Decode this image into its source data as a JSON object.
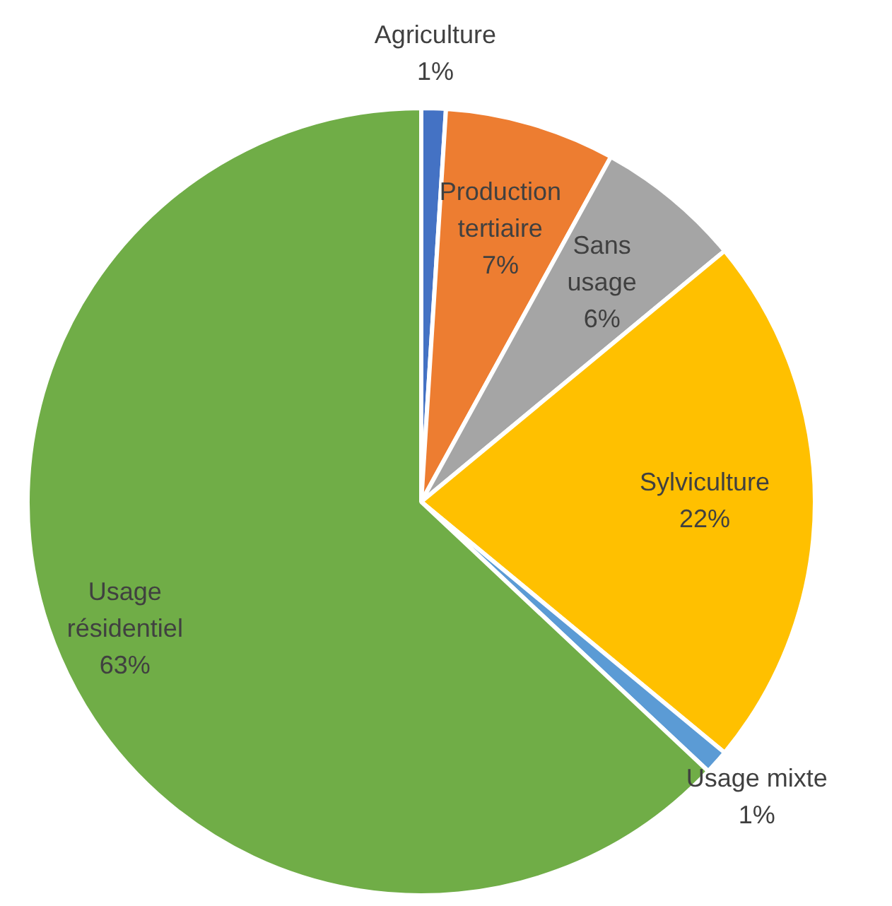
{
  "chart_data": {
    "type": "pie",
    "categories": [
      "Agriculture",
      "Production tertiaire",
      "Sans usage",
      "Sylviculture",
      "Usage mixte",
      "Usage résidentiel"
    ],
    "values": [
      1,
      7,
      6,
      22,
      1,
      63
    ],
    "value_labels": [
      "1%",
      "7%",
      "6%",
      "22%",
      "1%",
      "63%"
    ],
    "colors": [
      "#4472c4",
      "#ed7d31",
      "#a5a5a5",
      "#ffc000",
      "#5b9bd5",
      "#70ad47"
    ],
    "legend": false
  }
}
